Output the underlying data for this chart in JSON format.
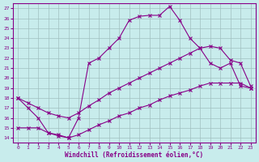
{
  "xlabel": "Windchill (Refroidissement éolien,°C)",
  "bg_color": "#c8ecec",
  "grid_color": "#a0c0c0",
  "line_color": "#880088",
  "ylim": [
    13.5,
    27.5
  ],
  "xlim": [
    -0.5,
    23.5
  ],
  "yticks": [
    14,
    15,
    16,
    17,
    18,
    19,
    20,
    21,
    22,
    23,
    24,
    25,
    26,
    27
  ],
  "xticks": [
    0,
    1,
    2,
    3,
    4,
    5,
    6,
    7,
    8,
    9,
    10,
    11,
    12,
    13,
    14,
    15,
    16,
    17,
    18,
    19,
    20,
    21,
    22,
    23
  ],
  "line1_x": [
    0,
    1,
    2,
    3,
    4,
    5,
    6,
    7,
    8,
    9,
    10,
    11,
    12,
    13,
    14,
    15,
    16,
    17,
    18,
    19,
    20,
    21,
    22,
    23
  ],
  "line1_y": [
    18,
    17,
    16,
    14.5,
    14.2,
    14.0,
    16.0,
    21.5,
    22.0,
    23.0,
    24.0,
    25.8,
    26.2,
    26.3,
    26.3,
    27.2,
    25.8,
    24.0,
    23.0,
    21.5,
    21.0,
    21.5,
    19.2,
    19.0
  ],
  "line2_x": [
    0,
    1,
    2,
    3,
    4,
    5,
    6,
    7,
    8,
    9,
    10,
    11,
    12,
    13,
    14,
    15,
    16,
    17,
    18,
    19,
    20,
    21,
    22,
    23
  ],
  "line2_y": [
    18,
    17.5,
    17.0,
    16.5,
    16.2,
    16.0,
    16.5,
    17.2,
    17.8,
    18.5,
    19.0,
    19.5,
    20.0,
    20.5,
    21.0,
    21.5,
    22.0,
    22.5,
    23.0,
    23.2,
    23.0,
    21.8,
    21.5,
    19.2
  ],
  "line3_x": [
    0,
    1,
    2,
    3,
    4,
    5,
    6,
    7,
    8,
    9,
    10,
    11,
    12,
    13,
    14,
    15,
    16,
    17,
    18,
    19,
    20,
    21,
    22,
    23
  ],
  "line3_y": [
    15.0,
    15.0,
    15.0,
    14.5,
    14.3,
    14.0,
    14.3,
    14.8,
    15.3,
    15.7,
    16.2,
    16.5,
    17.0,
    17.3,
    17.8,
    18.2,
    18.5,
    18.8,
    19.2,
    19.5,
    19.5,
    19.5,
    19.5,
    19.0
  ]
}
